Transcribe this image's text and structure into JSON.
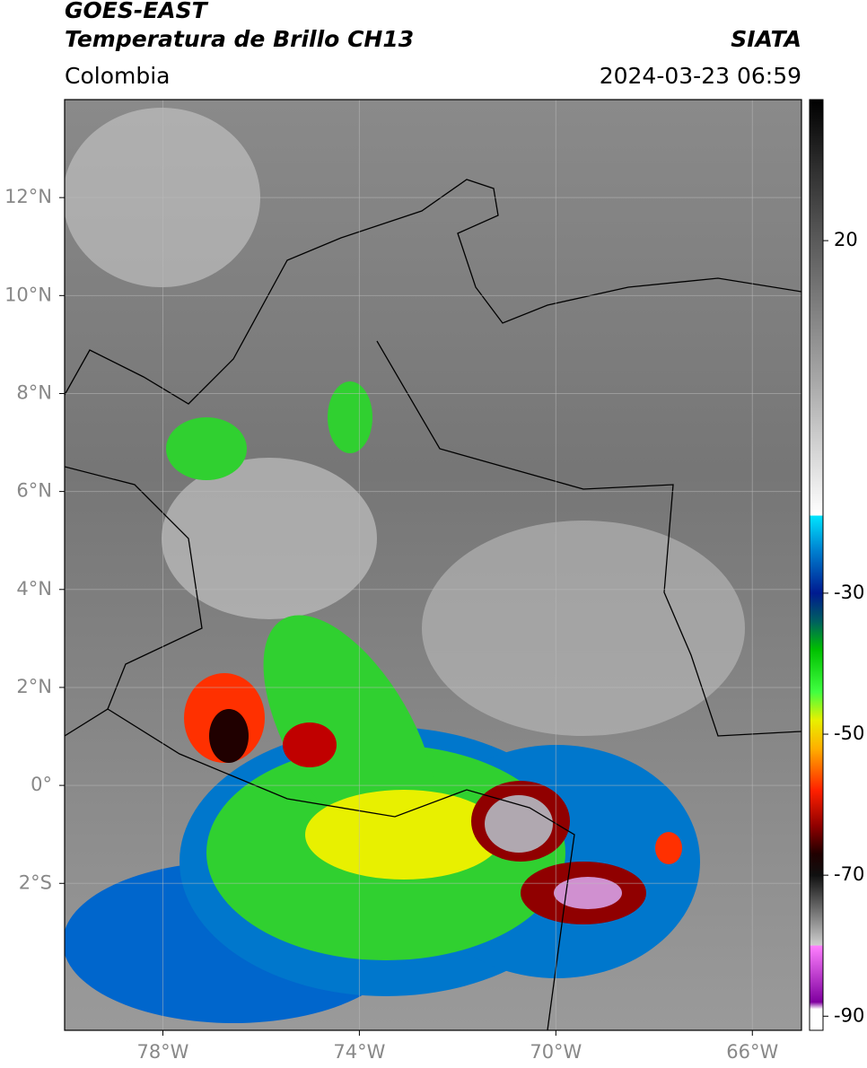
{
  "header": {
    "title": "GOES-EAST",
    "subtitle": "Temperatura de Brillo CH13",
    "source": "SIATA",
    "region": "Colombia",
    "datetime": "2024-03-23 06:59"
  },
  "map": {
    "xlim": [
      -80,
      -65
    ],
    "ylim": [
      -5,
      14
    ],
    "grid": true,
    "xticks": [
      {
        "value": -78,
        "label": "78°W"
      },
      {
        "value": -74,
        "label": "74°W"
      },
      {
        "value": -70,
        "label": "70°W"
      },
      {
        "value": -66,
        "label": "66°W"
      }
    ],
    "yticks": [
      {
        "value": 12,
        "label": "12°N"
      },
      {
        "value": 10,
        "label": "10°N"
      },
      {
        "value": 8,
        "label": "8°N"
      },
      {
        "value": 6,
        "label": "6°N"
      },
      {
        "value": 4,
        "label": "4°N"
      },
      {
        "value": 2,
        "label": "2°N"
      },
      {
        "value": 0,
        "label": "0°"
      },
      {
        "value": -2,
        "label": "2°S"
      }
    ]
  },
  "colorbar": {
    "lim": [
      -92,
      40
    ],
    "ticks": [
      20,
      -30,
      -50,
      -70,
      -90
    ],
    "colormap": [
      {
        "value": 40,
        "color": "#000000"
      },
      {
        "value": 30,
        "color": "#303030"
      },
      {
        "value": 20,
        "color": "#5a5a5a"
      },
      {
        "value": 0,
        "color": "#a8a8a8"
      },
      {
        "value": -19,
        "color": "#ffffff"
      },
      {
        "value": -19,
        "color": "#00e5ff"
      },
      {
        "value": -24,
        "color": "#0080d0"
      },
      {
        "value": -30,
        "color": "#001a90"
      },
      {
        "value": -34,
        "color": "#006060"
      },
      {
        "value": -38,
        "color": "#00c000"
      },
      {
        "value": -44,
        "color": "#40ff40"
      },
      {
        "value": -48,
        "color": "#e8f000"
      },
      {
        "value": -52,
        "color": "#ffb000"
      },
      {
        "value": -58,
        "color": "#ff2000"
      },
      {
        "value": -63,
        "color": "#900000"
      },
      {
        "value": -67,
        "color": "#200000"
      },
      {
        "value": -70,
        "color": "#101010"
      },
      {
        "value": -75,
        "color": "#707070"
      },
      {
        "value": -80,
        "color": "#d0d0d0"
      },
      {
        "value": -80,
        "color": "#ff80ff"
      },
      {
        "value": -88,
        "color": "#8000a0"
      },
      {
        "value": -89,
        "color": "#ffffff"
      },
      {
        "value": -92,
        "color": "#ffffff"
      }
    ]
  }
}
